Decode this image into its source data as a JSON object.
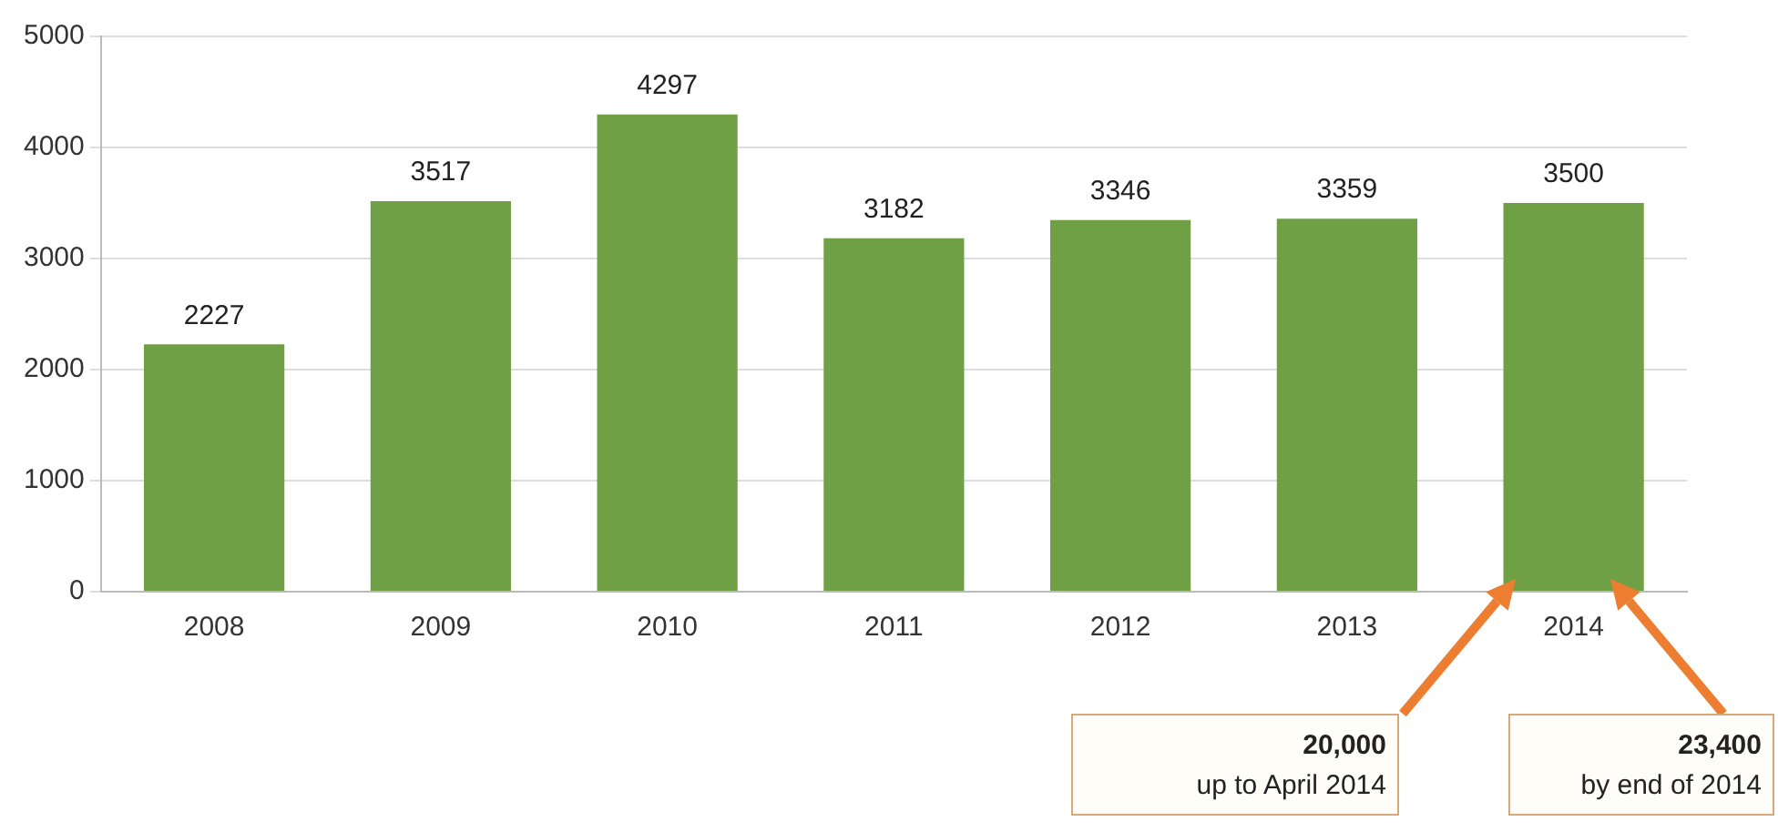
{
  "chart_data": {
    "type": "bar",
    "categories": [
      "2008",
      "2009",
      "2010",
      "2011",
      "2012",
      "2013",
      "2014"
    ],
    "values": [
      2227,
      3517,
      4297,
      3182,
      3346,
      3359,
      3500
    ],
    "color": "#70a045",
    "ylim": [
      0,
      5000
    ],
    "yticks": [
      0,
      1000,
      2000,
      3000,
      4000,
      5000
    ],
    "grid": "y",
    "data_labels": true,
    "legend": false,
    "annotations": [
      "20,000",
      "up to April 2014",
      "23,400",
      "by end of 2014"
    ]
  }
}
